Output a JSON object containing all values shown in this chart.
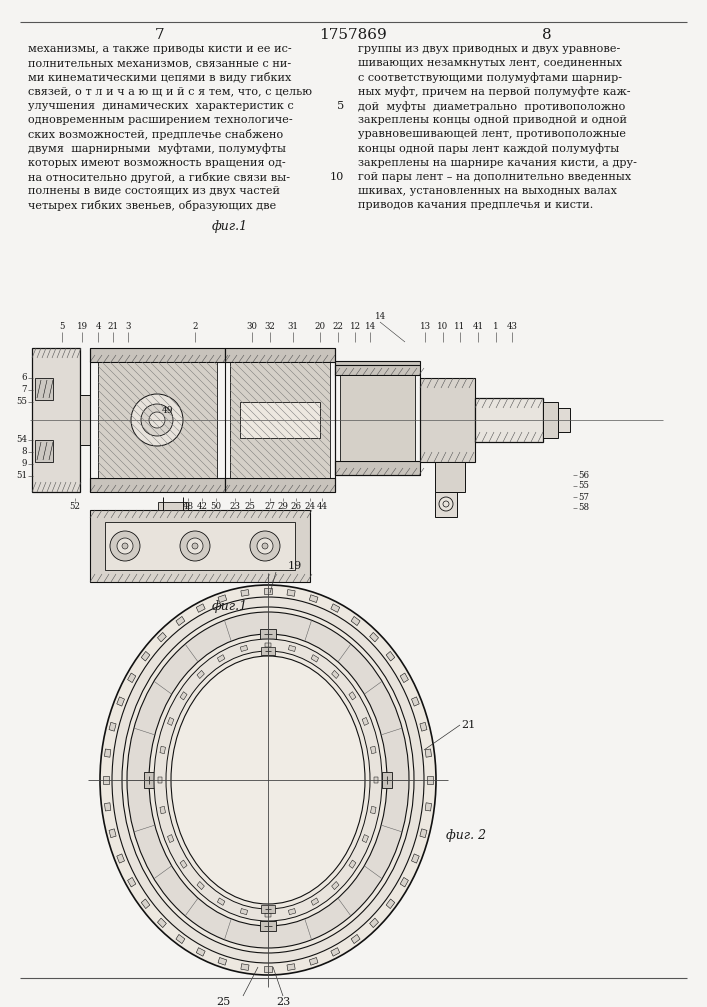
{
  "page_number_left": "7",
  "patent_number": "1757869",
  "page_number_right": "8",
  "fig1_label": "фиг.1",
  "fig2_label": "фиг. 2",
  "bg_color": "#f5f4f2",
  "text_color": "#1a1a1a",
  "lc": "#111111",
  "left_text_lines": [
    "механизмы, а также приводы кисти и ее ис-",
    "полнительных механизмов, связанные с ни-",
    "ми кинематическими цепями в виду гибких",
    "связей, о т л и ч а ю щ и й с я тем, что, с целью",
    "улучшения  динамических  характеристик с",
    "одновременным расширением технологиче-",
    "ских возможностей, предплечье снабжено",
    "двумя  шарнирными  муфтами, полумуфты",
    "которых имеют возможность вращения од-",
    "на относительно другой, а гибкие связи вы-",
    "полнены в виде состоящих из двух частей",
    "четырех гибких звеньев, образующих две"
  ],
  "right_text_lines": [
    "группы из двух приводных и двух уравнове-",
    "шивающих незамкнутых лент, соединенных",
    "с соответствующими полумуфтами шарнир-",
    "ных муфт, причем на первой полумуфте каж-",
    "дой  муфты  диаметрально  противоположно",
    "закреплены концы одной приводной и одной",
    "уравновешивающей лент, противоположные",
    "концы одной пары лент каждой полумуфты",
    "закреплены на шарнире качания кисти, а дру-",
    "гой пары лент – на дополнительно введенных",
    "шкивах, установленных на выходных валах",
    "приводов качания предплечья и кисти."
  ]
}
